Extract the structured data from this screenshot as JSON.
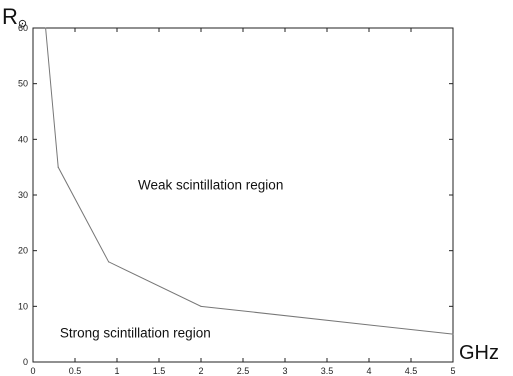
{
  "chart_data": {
    "type": "line",
    "title": "",
    "xlabel": "GHz",
    "ylabel": "R",
    "ylabel_subscript": "⊙",
    "xlim": [
      0,
      5
    ],
    "ylim": [
      0,
      60
    ],
    "xticks": [
      0,
      0.5,
      1,
      1.5,
      2,
      2.5,
      3,
      3.5,
      4,
      4.5,
      5
    ],
    "xtick_labels": [
      "0",
      "0.5",
      "1",
      "1.5",
      "2",
      "2.5",
      "3",
      "3.5",
      "4",
      "4.5",
      "5"
    ],
    "yticks": [
      0,
      10,
      20,
      30,
      40,
      50,
      60
    ],
    "ytick_labels": [
      "0",
      "10",
      "20",
      "30",
      "40",
      "50",
      "60"
    ],
    "grid": false,
    "series": [
      {
        "x": [
          0.15,
          0.3,
          0.9,
          2.0,
          5.0
        ],
        "y": [
          60,
          35,
          18,
          10,
          5
        ],
        "color": "#777777"
      }
    ],
    "annotations": [
      {
        "text": "Weak scintillation region",
        "x": 1.25,
        "y": 31
      },
      {
        "text": "Strong scintillation region",
        "x": 0.32,
        "y": 4.4
      }
    ]
  }
}
